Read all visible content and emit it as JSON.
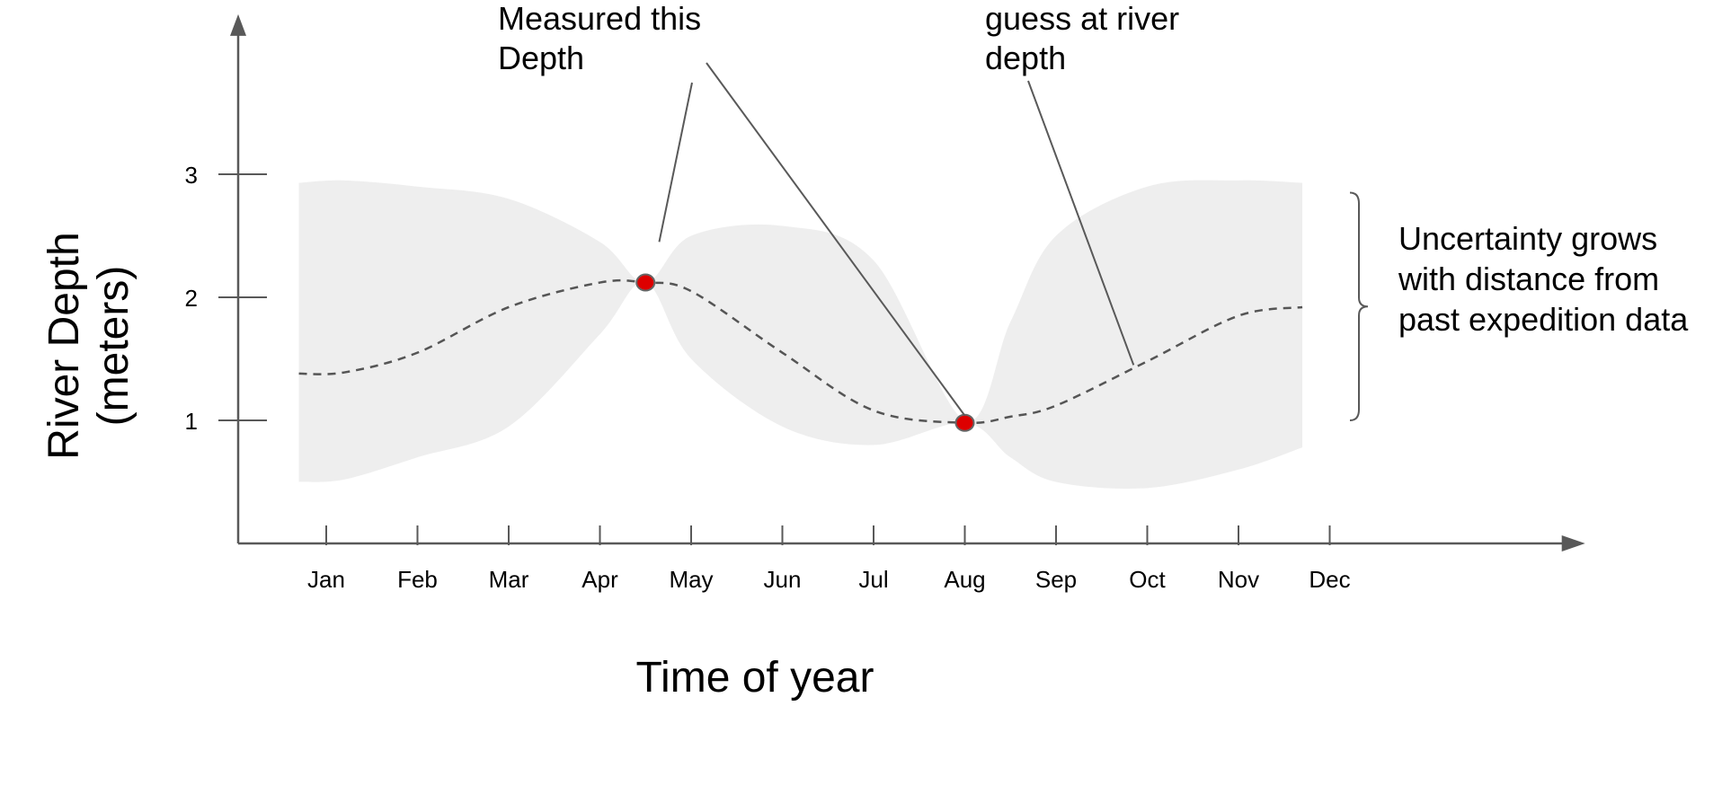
{
  "chart_data": {
    "type": "line",
    "title": "",
    "xlabel": "Time of year",
    "ylabel": [
      "River Depth",
      "(meters)"
    ],
    "x_ticks": [
      "Jan",
      "Feb",
      "Mar",
      "Apr",
      "May",
      "Jun",
      "Jul",
      "Aug",
      "Sep",
      "Oct",
      "Nov",
      "Dec"
    ],
    "y_ticks": [
      1,
      2,
      3
    ],
    "xlim": [
      0.95,
      14.8
    ],
    "ylim": [
      0,
      4.3
    ],
    "grid": false,
    "series": [
      {
        "style": "dashed",
        "x": [
          0.7,
          1.2,
          2,
          3,
          4,
          4.5,
          5,
          6,
          7,
          8,
          8.5,
          9,
          10,
          11,
          11.7
        ],
        "y": [
          1.38,
          1.39,
          1.55,
          1.92,
          2.12,
          2.12,
          2.05,
          1.55,
          1.08,
          0.98,
          1.03,
          1.12,
          1.48,
          1.85,
          1.92
        ]
      }
    ],
    "measured_points": [
      {
        "x": 4.5,
        "y": 2.12
      },
      {
        "x": 8.0,
        "y": 0.98
      }
    ],
    "uncertainty_band": {
      "x": [
        0.7,
        1.2,
        2,
        3,
        4,
        4.5,
        5,
        6,
        7,
        8,
        8.5,
        9,
        10,
        11,
        11.7
      ],
      "upper": [
        2.93,
        2.95,
        2.9,
        2.8,
        2.45,
        2.12,
        2.5,
        2.58,
        2.3,
        1.0,
        1.8,
        2.5,
        2.9,
        2.95,
        2.93
      ],
      "lower": [
        0.5,
        0.52,
        0.7,
        0.95,
        1.7,
        2.12,
        1.5,
        0.95,
        0.8,
        0.98,
        0.7,
        0.5,
        0.45,
        0.6,
        0.78
      ]
    },
    "annotations": [
      {
        "lines": [
          "Measured this",
          "Depth"
        ],
        "points_to": [
          [
            4.65,
            2.45
          ],
          [
            8.0,
            0.98
          ]
        ]
      },
      {
        "lines": [
          "guess at river",
          "depth"
        ],
        "points_to": [
          [
            9.85,
            1.45
          ]
        ]
      },
      {
        "lines": [
          "Uncertainty grows",
          "with distance from",
          "past expedition data"
        ],
        "brace_y": [
          1.0,
          2.85
        ]
      }
    ],
    "colors": {
      "axis": "#595959",
      "band": "#eeeeee",
      "line": "#555555",
      "point": "#dd0000",
      "point_edge": "#666666"
    }
  }
}
